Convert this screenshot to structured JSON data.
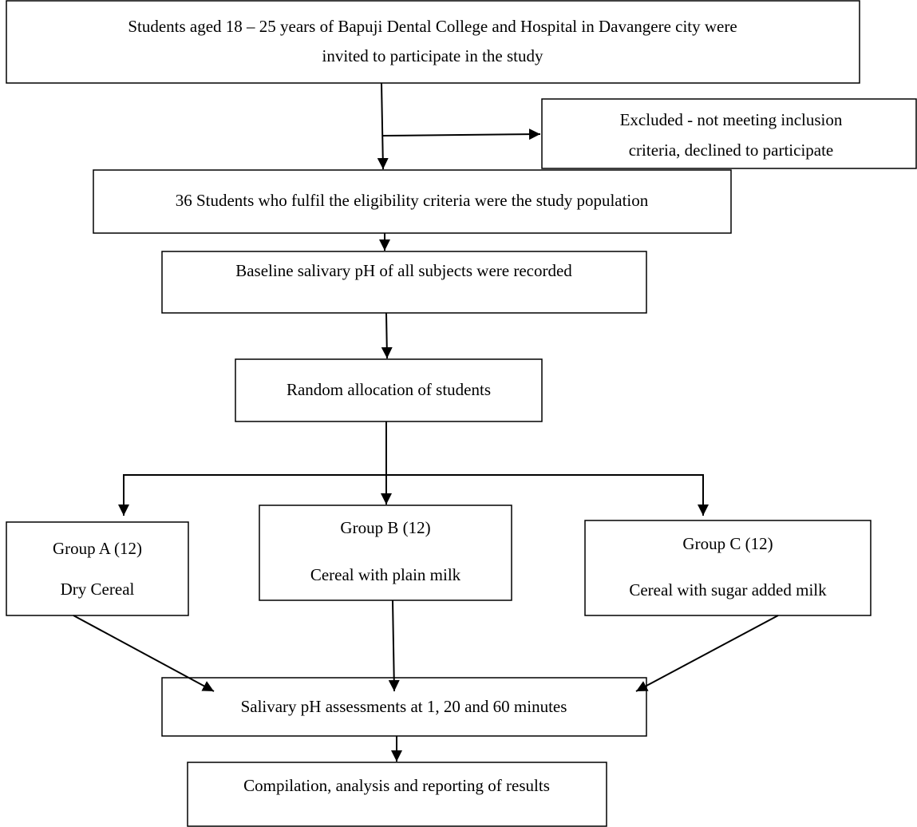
{
  "nodes": [
    {
      "lines": [
        "Students aged 18 – 25 years of Bapuji Dental College and Hospital in Davangere city were",
        "invited to participate in the study"
      ]
    },
    {
      "lines": [
        "Excluded - not meeting inclusion",
        "criteria, declined to participate"
      ]
    },
    {
      "lines": [
        "36 Students who fulfil the eligibility criteria were the study population"
      ]
    },
    {
      "lines": [
        "Baseline salivary pH of all subjects were recorded"
      ]
    },
    {
      "lines": [
        "Random allocation of students"
      ]
    },
    {
      "lines": [
        "Group A (12)",
        "Dry Cereal"
      ]
    },
    {
      "lines": [
        "Group B (12)",
        "Cereal with plain milk"
      ]
    },
    {
      "lines": [
        "Group C (12)",
        "Cereal with sugar added milk"
      ]
    },
    {
      "lines": [
        "Salivary pH assessments at 1, 20 and 60 minutes"
      ]
    },
    {
      "lines": [
        "Compilation, analysis and reporting of results"
      ]
    }
  ]
}
